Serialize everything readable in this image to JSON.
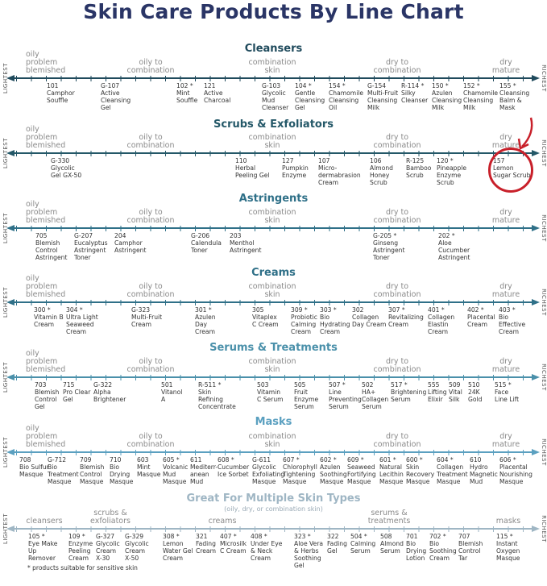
{
  "title": "Skin Care Products By Line Chart",
  "end_labels": {
    "left": "LIGHTEST",
    "right": "RICHEST"
  },
  "skin_scale": [
    "oily\nproblem\nblemished",
    "oily to\ncombination",
    "combination\nskin",
    "dry to\ncombination",
    "dry\nmature"
  ],
  "sections": [
    {
      "title": "Cleansers",
      "color": "#1f4a5c",
      "items": [
        "101\nCamphor\nSouffle",
        "G-107\nActive\nCleansing\nGel",
        "102 *\nMint\nSouffle",
        "121\nActive\nCharcoal",
        "G-103\nGlycolic\nMud\nCleanser",
        "104 *\nGentle\nCleansing\nGel",
        "154 *\nChamomile\nCleansing\nOil",
        "G-154\nMulti-Fruit\nCleansing\nMilk",
        "R-114 *\nSilky\nCleanser",
        "150 *\nAzulen\nCleansing\nMilk",
        "152 *\nChamomile\nCleansing\nMilk",
        "155 *\nCleansing\nBalm &\nMask"
      ]
    },
    {
      "title": "Scrubs & Exfoliators",
      "color": "#245868",
      "items": [
        "G-330\nGlycolic\nGel GX-50",
        "110\nHerbal\nPeeling Gel",
        "127\nPumpkin\nEnzyme",
        "107\nMicro-\ndermabrasion\nCream",
        "106\nAlmond\nHoney\nScrub",
        "R-125\nBamboo\nScrub",
        "120 *\nPineapple\nEnzyme\nScrub",
        "157\nLemon\nSugar Scrub"
      ],
      "highlighted_item": "157\nLemon\nSugar Scrub",
      "highlight_color": "#c8202a"
    },
    {
      "title": "Astringents",
      "color": "#2f7088",
      "items": [
        "705\nBlemish\nControl\nAstringent",
        "G-207\nEucalyptus\nAstringent\nToner",
        "204\nCamphor\nAstringent",
        "G-206\nCalendula\nToner",
        "203\nMenthol\nAstringent",
        "G-205 *\nGinseng\nAstringent\nToner",
        "202 *\nAloe\nCucumber\nAstringent"
      ]
    },
    {
      "title": "Creams",
      "color": "#2f7088",
      "items": [
        "300 *\nVitamin B\nCream",
        "304 *\nUltra Light\nSeaweed\nCream",
        "G-323\nMulti-Fruit\nCream",
        "301 *\nAzulen\nDay\nCream",
        "305\nVitaplex\nC Cream",
        "309 *\nProbiotic\nCalming\nCream",
        "303 *\nBio\nHydrating\nCream",
        "302\nCollagen\nDay Cream",
        "307 *\nRevitalizing\nCream",
        "401 *\nCollagen\nElastin\nCream",
        "402 *\nPlacental\nCream",
        "403 *\nBio\nEffective\nCream"
      ]
    },
    {
      "title": "Serums & Treatments",
      "color": "#4a90aa",
      "items": [
        "703\nBlemish\nControl\nGel",
        "715\nPro Clear\nGel",
        "G-322\nAlpha\nBrightener",
        "501\nVitanol\nA",
        "R-511 *\nSkin\nRefining\nConcentrate",
        "503\nVitamin\nC Serum",
        "505\nFruit\nEnzyme\nSerum",
        "507 *\nLine\nPreventing\nSerum",
        "502\nHA+\nCollagen\nSerum",
        "517 *\nBrightening\nSerum",
        "555\nLifting\nElixir",
        "509\nVital\nSilk",
        "510\n24K\nGold",
        "515 *\nFace\nLine Lift"
      ]
    },
    {
      "title": "Masks",
      "color": "#5ba0c0",
      "items": [
        "708\nBio Sulfur\nMasque",
        "G-712\nBio\nTreatment\nMasque",
        "709\nBlemish\nControl\nMasque",
        "710\nBio\nDrying\nMasque",
        "603\nMint\nMasque",
        "605 *\nVolcanic\nMud\nMasque",
        "611\nMediterr-\nanean\nMud",
        "608 *\nCucumber\nIce Sorbet",
        "G-611\nGlycolic\nExfoliating\nMasque",
        "607 *\nChlorophyll\nTightening\nMasque",
        "602 *\nAzulen\nSoothing\nMasque",
        "609 *\nSeaweed\nFortifying\nMasque",
        "601 *\nNatural\nLecithin\nMasque",
        "600 *\nSkin\nRecovery\nMasque",
        "604 *\nCollagen\nTreatment\nMasque",
        "610\nHydro\nMagnetic\nMud",
        "606 *\nPlacental\nNourishing\nMasque"
      ]
    },
    {
      "title": "Great For Multiple Skin Types",
      "subtitle": "(oily, dry, or combination skin)",
      "color": "#9fb6c4",
      "scale": [
        "cleansers",
        "scrubs &\nexfoliators",
        "creams",
        "serums &\ntreatments",
        "masks"
      ],
      "items": [
        "105 *\nEye Make\nUp\nRemover",
        "109 *\nEnzyme\nPeeling\nCream",
        "G-327\nGlycolic\nCream\nX-30",
        "G-329\nGlycolic\nCream\nX-50",
        "308 *\nLemon\nWater Gel\nCream",
        "321\nFading\nCream",
        "407 *\nMicrosilk\nC Cream",
        "408 *\nUnder Eye\n& Neck\nCream",
        "323 *\nAloe Vera\n& Herbs\nSoothing\nGel",
        "322\nFading\nGel",
        "504 *\nCalming\nSerum",
        "508\nAlmond\nSerum",
        "701\nBio\nDrying\nLotion",
        "702 *\nBio\nSoothing\nCream",
        "707\nBlemish\nControl\nTar",
        "115 *\nInstant\nOxygen\nMasque"
      ]
    }
  ],
  "footnote": "* products suitable for sensitive skin"
}
